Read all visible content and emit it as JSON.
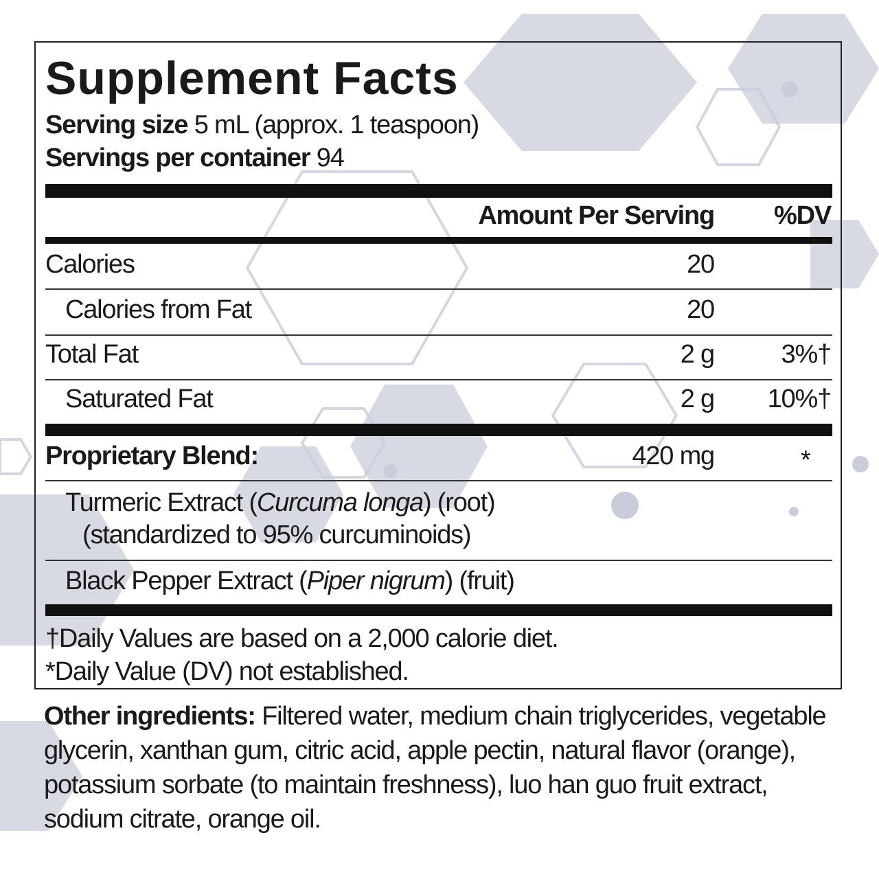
{
  "title": "Supplement Facts",
  "serving_size": {
    "label": "Serving size",
    "value": "5 mL (approx. 1 teaspoon)"
  },
  "servings_per_container": {
    "label": "Servings per container",
    "value": "94"
  },
  "columns": {
    "amount": "Amount Per Serving",
    "dv": "%DV"
  },
  "rows": [
    {
      "name": "Calories",
      "amount": "20"
    },
    {
      "name": "Calories from Fat",
      "amount": "20"
    },
    {
      "name": "Total Fat",
      "amount": "2 g",
      "dv": "3%†"
    },
    {
      "name": "Saturated Fat",
      "amount": "2 g",
      "dv": "10%†"
    }
  ],
  "blend": {
    "name": "Proprietary Blend:",
    "amount": "420 mg",
    "dv": "*",
    "ingredients": [
      {
        "before": "Turmeric Extract (",
        "latin": "Curcuma longa",
        "after": ") (root)",
        "note": "(standardized to 95% curcuminoids)"
      },
      {
        "before": "Black Pepper Extract (",
        "latin": "Piper nigrum",
        "after": ") (fruit)"
      }
    ]
  },
  "footnotes": [
    "†Daily Values are based on a 2,000 calorie diet.",
    "*Daily Value (DV) not established."
  ],
  "other_ingredients": {
    "label": "Other ingredients:",
    "text": "Filtered water, medium chain triglycerides, vegetable glycerin, xanthan gum, citric acid, apple pectin, natural flavor (orange), potassium sorbate (to maintain freshness), luo han guo fruit extract, sodium citrate, orange oil."
  }
}
